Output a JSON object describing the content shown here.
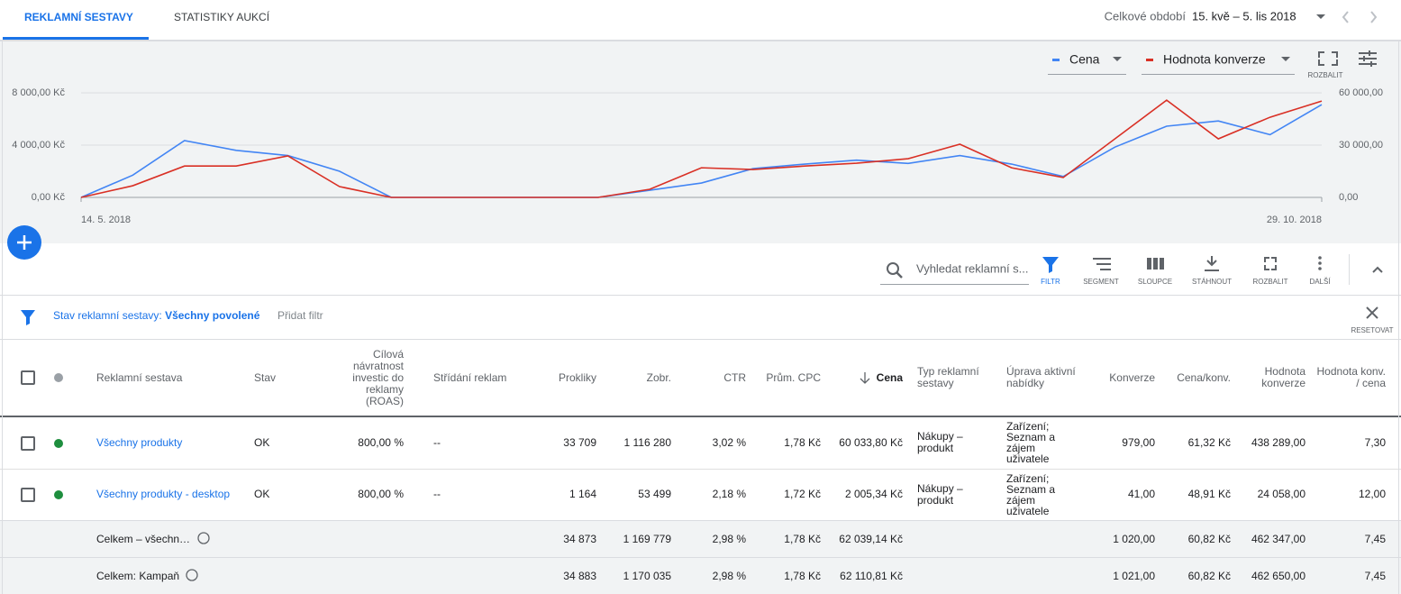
{
  "header": {
    "tabs": [
      "REKLAMNÍ SESTAVY",
      "STATISTIKY AUKCÍ"
    ],
    "period_label": "Celkové období",
    "period_value": "15. kvě – 5. lis 2018"
  },
  "chart_data": {
    "type": "line",
    "categories": [
      "14. 5. 2018",
      null,
      null,
      null,
      null,
      null,
      null,
      null,
      null,
      null,
      null,
      null,
      null,
      null,
      null,
      null,
      null,
      null,
      null,
      null,
      null,
      null,
      null,
      null,
      "29. 10. 2018"
    ],
    "series": [
      {
        "name": "Cena",
        "color": "#4285f4",
        "values": [
          0,
          1700,
          4350,
          3600,
          3200,
          2000,
          0,
          0,
          0,
          0,
          0,
          550,
          1100,
          2200,
          2550,
          2850,
          2600,
          3200,
          2550,
          1600,
          3850,
          5450,
          5850,
          4800,
          7100
        ]
      },
      {
        "name": "Hodnota konverze",
        "color": "#d93025",
        "axis": "y2",
        "values": [
          0,
          6700,
          18000,
          18000,
          23800,
          6200,
          0,
          0,
          0,
          0,
          0,
          4650,
          17000,
          16000,
          18000,
          19600,
          22200,
          30500,
          17000,
          11400,
          33600,
          55800,
          33600,
          46000,
          55300
        ]
      }
    ],
    "ylim": [
      0,
      8000
    ],
    "yticks": [
      {
        "value": 0,
        "label": "0,00 Kč"
      },
      {
        "value": 4000,
        "label": "4 000,00 Kč"
      },
      {
        "value": 8000,
        "label": "8 000,00 Kč"
      }
    ],
    "y2lim": [
      0,
      60000
    ],
    "y2ticks": [
      {
        "value": 0,
        "label": "0,00"
      },
      {
        "value": 30000,
        "label": "30 000,00"
      },
      {
        "value": 60000,
        "label": "60 000,00"
      }
    ],
    "grid": true,
    "legend": "top-right"
  },
  "chart_controls": {
    "expand_label": "ROZBALIT"
  },
  "toolbar": {
    "search_placeholder": "Vyhledat reklamní s...",
    "buttons": [
      "FILTR",
      "SEGMENT",
      "SLOUPCE",
      "STÁHNOUT",
      "ROZBALIT",
      "DALŠÍ"
    ]
  },
  "filter": {
    "label": "Stav reklamní sestavy:",
    "value": "Všechny povolené",
    "add_filter": "Přidat filtr",
    "reset": "RESETOVAT"
  },
  "table": {
    "headers": [
      "Reklamní sestava",
      "Stav",
      "Cílová návratnost investic do reklamy (ROAS)",
      "Střídání reklam",
      "Prokliky",
      "Zobr.",
      "CTR",
      "Prům. CPC",
      "Cena",
      "Typ reklamní sestavy",
      "Úprava aktivní nabídky",
      "Konverze",
      "Cena/konv.",
      "Hodnota konverze",
      "Hodnota konv. / cena"
    ],
    "rows": [
      [
        "Všechny produkty",
        "OK",
        "800,00 %",
        "--",
        "33 709",
        "1 116 280",
        "3,02 %",
        "1,78 Kč",
        "60 033,80 Kč",
        "Nákupy – produkt",
        "Zařízení; Seznam a zájem uživatele",
        "979,00",
        "61,32 Kč",
        "438 289,00",
        "7,30"
      ],
      [
        "Všechny produkty - desktop",
        "OK",
        "800,00 %",
        "--",
        "1 164",
        "53 499",
        "2,18 %",
        "1,72 Kč",
        "2 005,34 Kč",
        "Nákupy – produkt",
        "Zařízení; Seznam a zájem uživatele",
        "41,00",
        "48,91 Kč",
        "24 058,00",
        "12,00"
      ]
    ],
    "totals": [
      [
        "Celkem – všechn…",
        null,
        null,
        null,
        "34 873",
        "1 169 779",
        "2,98 %",
        "1,78 Kč",
        "62 039,14 Kč",
        null,
        null,
        "1 020,00",
        "60,82 Kč",
        "462 347,00",
        "7,45"
      ],
      [
        "Celkem: Kampaň",
        null,
        null,
        null,
        "34 883",
        "1 170 035",
        "2,98 %",
        "1,78 Kč",
        "62 110,81 Kč",
        null,
        null,
        "1 021,00",
        "60,82 Kč",
        "462 650,00",
        "7,45"
      ]
    ]
  }
}
